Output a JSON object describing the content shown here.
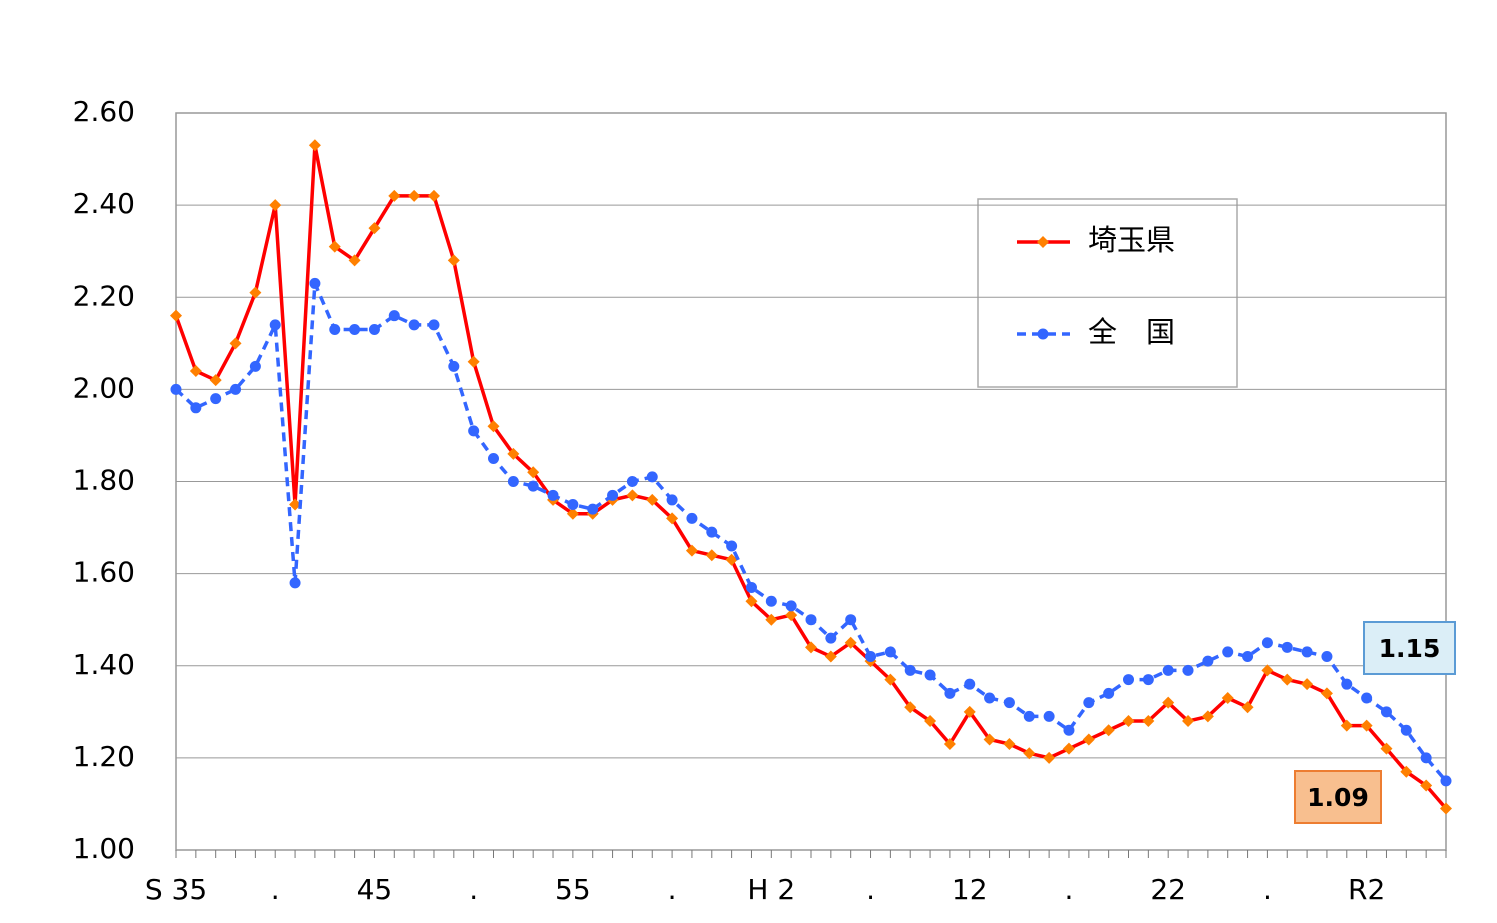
{
  "chart_data": {
    "type": "line",
    "categories": [
      "S 35",
      null,
      null,
      null,
      null,
      ".",
      null,
      null,
      null,
      null,
      "45",
      null,
      null,
      null,
      null,
      ".",
      null,
      null,
      null,
      null,
      "55",
      null,
      null,
      null,
      null,
      ".",
      null,
      null,
      null,
      null,
      "H 2",
      null,
      null,
      null,
      null,
      ".",
      null,
      null,
      null,
      null,
      "12",
      null,
      null,
      null,
      null,
      ".",
      null,
      null,
      null,
      null,
      "22",
      null,
      null,
      null,
      null,
      ".",
      null,
      null,
      null,
      null,
      "R2",
      null,
      null,
      null,
      null
    ],
    "series": [
      {
        "name": "埼玉県",
        "color": "#ff0000",
        "marker_color": "#ff8000",
        "marker": "diamond",
        "dash": false,
        "values": [
          2.16,
          2.04,
          2.02,
          2.1,
          2.21,
          2.4,
          1.75,
          2.53,
          2.31,
          2.28,
          2.35,
          2.42,
          2.42,
          2.42,
          2.28,
          2.06,
          1.92,
          1.86,
          1.82,
          1.76,
          1.73,
          1.73,
          1.76,
          1.77,
          1.76,
          1.72,
          1.65,
          1.64,
          1.63,
          1.54,
          1.5,
          1.51,
          1.44,
          1.42,
          1.45,
          1.41,
          1.37,
          1.31,
          1.28,
          1.23,
          1.3,
          1.24,
          1.23,
          1.21,
          1.2,
          1.22,
          1.24,
          1.26,
          1.28,
          1.28,
          1.32,
          1.28,
          1.29,
          1.33,
          1.31,
          1.39,
          1.37,
          1.36,
          1.34,
          1.27,
          1.27,
          1.22,
          1.17,
          1.14,
          1.09
        ],
        "callout_fill": "#f8bf8f",
        "callout_stroke": "#ed7d31"
      },
      {
        "name": "全　国",
        "color": "#3366ff",
        "marker_color": "#3366ff",
        "marker": "circle",
        "dash": true,
        "values": [
          2.0,
          1.96,
          1.98,
          2.0,
          2.05,
          2.14,
          1.58,
          2.23,
          2.13,
          2.13,
          2.13,
          2.16,
          2.14,
          2.14,
          2.05,
          1.91,
          1.85,
          1.8,
          1.79,
          1.77,
          1.75,
          1.74,
          1.77,
          1.8,
          1.81,
          1.76,
          1.72,
          1.69,
          1.66,
          1.57,
          1.54,
          1.53,
          1.5,
          1.46,
          1.5,
          1.42,
          1.43,
          1.39,
          1.38,
          1.34,
          1.36,
          1.33,
          1.32,
          1.29,
          1.29,
          1.26,
          1.32,
          1.34,
          1.37,
          1.37,
          1.39,
          1.39,
          1.41,
          1.43,
          1.42,
          1.45,
          1.44,
          1.43,
          1.42,
          1.36,
          1.33,
          1.3,
          1.26,
          1.2,
          1.15
        ],
        "callout_fill": "#dbeef7",
        "callout_stroke": "#5b9bd5"
      }
    ],
    "ylim": [
      1.0,
      2.6
    ],
    "yticks": [
      {
        "value": 1.0,
        "label": "1.00"
      },
      {
        "value": 1.2,
        "label": "1.20"
      },
      {
        "value": 1.4,
        "label": "1.40"
      },
      {
        "value": 1.6,
        "label": "1.60"
      },
      {
        "value": 1.8,
        "label": "1.80"
      },
      {
        "value": 2.0,
        "label": "2.00"
      },
      {
        "value": 2.2,
        "label": "2.20"
      },
      {
        "value": 2.4,
        "label": "2.40"
      },
      {
        "value": 2.6,
        "label": "2.60"
      }
    ],
    "grid": true
  }
}
